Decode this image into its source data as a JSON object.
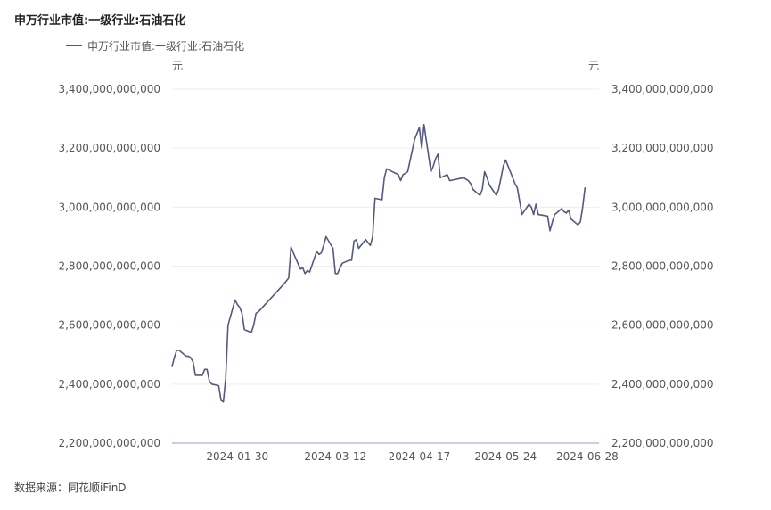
{
  "title": "申万行业市值:一级行业:石油石化",
  "source": "数据来源：同花顺iFinD",
  "colors": {
    "line": "#55597f",
    "baseline": "#b9bde6",
    "grid": "#eeeeee",
    "text": "#555555"
  },
  "chart_data": {
    "type": "line",
    "title": "申万行业市值:一级行业:石油石化",
    "xlabel": "",
    "ylabel_left": "元",
    "ylabel_right": "元",
    "ylim": [
      2200000000000,
      3400000000000
    ],
    "y_ticks": [
      2200000000000,
      2400000000000,
      2600000000000,
      2800000000000,
      3000000000000,
      3200000000000,
      3400000000000
    ],
    "y_tick_labels": [
      "2,200,000,000,000",
      "2,400,000,000,000",
      "2,600,000,000,000",
      "2,800,000,000,000",
      "3,000,000,000,000",
      "3,200,000,000,000",
      "3,400,000,000,000"
    ],
    "x_range": [
      "2024-01-02",
      "2024-07-03"
    ],
    "x_tick_labels": [
      "2024-01-30",
      "2024-03-12",
      "2024-04-17",
      "2024-05-24",
      "2024-06-28"
    ],
    "x_tick_dates": [
      "2024-01-30",
      "2024-03-12",
      "2024-04-17",
      "2024-05-24",
      "2024-06-28"
    ],
    "grid": true,
    "legend_position": "top-left",
    "series": [
      {
        "name": "申万行业市值:一级行业:石油石化",
        "points": [
          [
            "2024-01-02",
            2460
          ],
          [
            "2024-01-03",
            2490
          ],
          [
            "2024-01-04",
            2515
          ],
          [
            "2024-01-05",
            2515
          ],
          [
            "2024-01-08",
            2495
          ],
          [
            "2024-01-09",
            2495
          ],
          [
            "2024-01-10",
            2490
          ],
          [
            "2024-01-11",
            2475
          ],
          [
            "2024-01-12",
            2430
          ],
          [
            "2024-01-15",
            2430
          ],
          [
            "2024-01-16",
            2450
          ],
          [
            "2024-01-17",
            2450
          ],
          [
            "2024-01-18",
            2410
          ],
          [
            "2024-01-19",
            2400
          ],
          [
            "2024-01-22",
            2395
          ],
          [
            "2024-01-23",
            2345
          ],
          [
            "2024-01-24",
            2340
          ],
          [
            "2024-01-25",
            2420
          ],
          [
            "2024-01-26",
            2600
          ],
          [
            "2024-01-29",
            2685
          ],
          [
            "2024-01-30",
            2670
          ],
          [
            "2024-01-31",
            2660
          ],
          [
            "2024-02-01",
            2640
          ],
          [
            "2024-02-02",
            2585
          ],
          [
            "2024-02-05",
            2575
          ],
          [
            "2024-02-06",
            2600
          ],
          [
            "2024-02-07",
            2640
          ],
          [
            "2024-02-08",
            2645
          ],
          [
            "2024-02-19",
            2740
          ],
          [
            "2024-02-20",
            2750
          ],
          [
            "2024-02-21",
            2760
          ],
          [
            "2024-02-22",
            2865
          ],
          [
            "2024-02-23",
            2845
          ],
          [
            "2024-02-26",
            2790
          ],
          [
            "2024-02-27",
            2795
          ],
          [
            "2024-02-28",
            2775
          ],
          [
            "2024-02-29",
            2785
          ],
          [
            "2024-03-01",
            2780
          ],
          [
            "2024-03-04",
            2850
          ],
          [
            "2024-03-05",
            2840
          ],
          [
            "2024-03-06",
            2845
          ],
          [
            "2024-03-07",
            2870
          ],
          [
            "2024-03-08",
            2900
          ],
          [
            "2024-03-11",
            2860
          ],
          [
            "2024-03-12",
            2775
          ],
          [
            "2024-03-13",
            2775
          ],
          [
            "2024-03-14",
            2795
          ],
          [
            "2024-03-15",
            2810
          ],
          [
            "2024-03-18",
            2820
          ],
          [
            "2024-03-19",
            2820
          ],
          [
            "2024-03-20",
            2885
          ],
          [
            "2024-03-21",
            2890
          ],
          [
            "2024-03-22",
            2860
          ],
          [
            "2024-03-25",
            2890
          ],
          [
            "2024-03-26",
            2880
          ],
          [
            "2024-03-27",
            2870
          ],
          [
            "2024-03-28",
            2900
          ],
          [
            "2024-03-29",
            3030
          ],
          [
            "2024-04-01",
            3025
          ],
          [
            "2024-04-02",
            3100
          ],
          [
            "2024-04-03",
            3130
          ],
          [
            "2024-04-08",
            3110
          ],
          [
            "2024-04-09",
            3090
          ],
          [
            "2024-04-10",
            3110
          ],
          [
            "2024-04-11",
            3115
          ],
          [
            "2024-04-12",
            3120
          ],
          [
            "2024-04-15",
            3230
          ],
          [
            "2024-04-16",
            3250
          ],
          [
            "2024-04-17",
            3270
          ],
          [
            "2024-04-18",
            3200
          ],
          [
            "2024-04-19",
            3280
          ],
          [
            "2024-04-22",
            3120
          ],
          [
            "2024-04-23",
            3140
          ],
          [
            "2024-04-24",
            3165
          ],
          [
            "2024-04-25",
            3180
          ],
          [
            "2024-04-26",
            3100
          ],
          [
            "2024-04-29",
            3110
          ],
          [
            "2024-04-30",
            3090
          ],
          [
            "2024-05-06",
            3100
          ],
          [
            "2024-05-07",
            3095
          ],
          [
            "2024-05-08",
            3090
          ],
          [
            "2024-05-09",
            3080
          ],
          [
            "2024-05-10",
            3060
          ],
          [
            "2024-05-13",
            3040
          ],
          [
            "2024-05-14",
            3060
          ],
          [
            "2024-05-15",
            3120
          ],
          [
            "2024-05-16",
            3100
          ],
          [
            "2024-05-17",
            3075
          ],
          [
            "2024-05-20",
            3040
          ],
          [
            "2024-05-21",
            3060
          ],
          [
            "2024-05-22",
            3100
          ],
          [
            "2024-05-23",
            3140
          ],
          [
            "2024-05-24",
            3160
          ],
          [
            "2024-05-27",
            3100
          ],
          [
            "2024-05-28",
            3080
          ],
          [
            "2024-05-29",
            3065
          ],
          [
            "2024-05-30",
            3020
          ],
          [
            "2024-05-31",
            2975
          ],
          [
            "2024-06-03",
            3010
          ],
          [
            "2024-06-04",
            3000
          ],
          [
            "2024-06-05",
            2975
          ],
          [
            "2024-06-06",
            3010
          ],
          [
            "2024-06-07",
            2975
          ],
          [
            "2024-06-11",
            2970
          ],
          [
            "2024-06-12",
            2920
          ],
          [
            "2024-06-13",
            2950
          ],
          [
            "2024-06-14",
            2975
          ],
          [
            "2024-06-17",
            2995
          ],
          [
            "2024-06-18",
            2985
          ],
          [
            "2024-06-19",
            2980
          ],
          [
            "2024-06-20",
            2990
          ],
          [
            "2024-06-21",
            2960
          ],
          [
            "2024-06-24",
            2940
          ],
          [
            "2024-06-25",
            2950
          ],
          [
            "2024-06-26",
            3000
          ],
          [
            "2024-06-27",
            3065
          ]
        ]
      }
    ]
  }
}
